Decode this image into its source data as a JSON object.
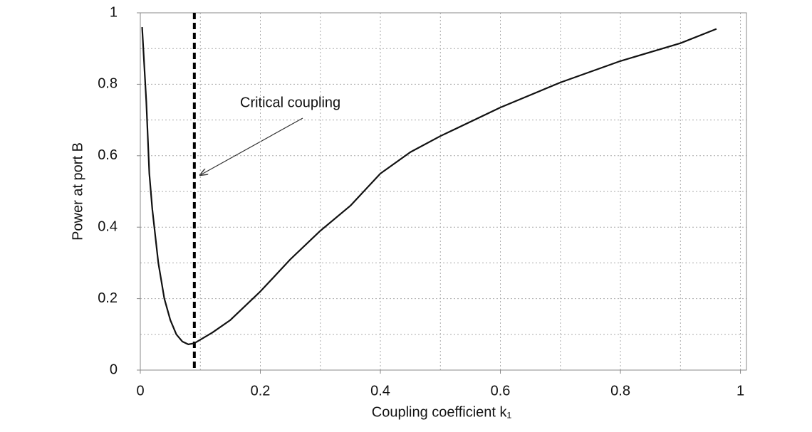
{
  "chart_data": {
    "type": "line",
    "x_label": "Coupling coefficient k₁",
    "y_label": "Power at port B",
    "annotation": "Critical coupling",
    "critical_x": 0.09,
    "x": [
      0.003,
      0.01,
      0.015,
      0.02,
      0.03,
      0.04,
      0.05,
      0.06,
      0.07,
      0.08,
      0.09,
      0.1,
      0.12,
      0.15,
      0.2,
      0.25,
      0.3,
      0.35,
      0.4,
      0.45,
      0.5,
      0.6,
      0.7,
      0.8,
      0.9,
      0.96
    ],
    "series": [
      {
        "color": "#111111",
        "values": [
          0.96,
          0.75,
          0.55,
          0.45,
          0.3,
          0.2,
          0.14,
          0.1,
          0.08,
          0.072,
          0.075,
          0.085,
          0.105,
          0.14,
          0.22,
          0.31,
          0.39,
          0.46,
          0.55,
          0.61,
          0.655,
          0.735,
          0.805,
          0.865,
          0.915,
          0.955
        ]
      }
    ],
    "xlim": [
      0,
      1.01
    ],
    "ylim": [
      0,
      1
    ],
    "xticks": [
      0,
      0.2,
      0.4,
      0.6,
      0.8,
      1
    ],
    "yticks": [
      0,
      0.2,
      0.4,
      0.6,
      0.8,
      1
    ],
    "xgrid": [
      0.1,
      0.2,
      0.3,
      0.4,
      0.5,
      0.6,
      0.7,
      0.8,
      0.9,
      1
    ],
    "ygrid": [
      0.1,
      0.2,
      0.3,
      0.4,
      0.5,
      0.6,
      0.7,
      0.8,
      0.9
    ],
    "grid": true
  }
}
